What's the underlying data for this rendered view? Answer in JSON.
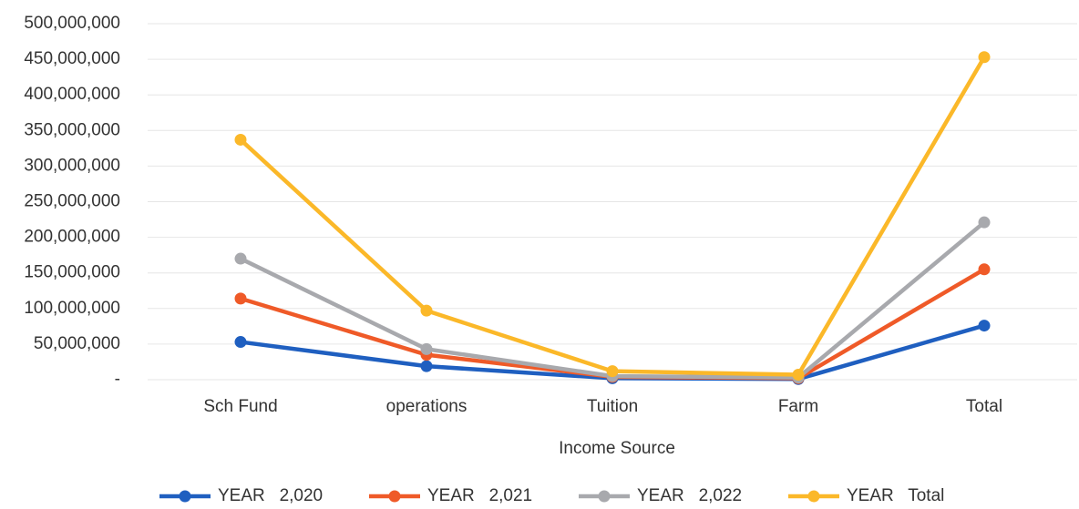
{
  "chart_data": {
    "type": "line",
    "x_label": "Income Source",
    "categories": [
      "Sch Fund",
      "operations",
      "Tuition",
      "Farm",
      "Total"
    ],
    "series": [
      {
        "name": "YEAR   2,020",
        "color": "#1f5fc0",
        "values": [
          53000000,
          19000000,
          2000000,
          1000000,
          76000000
        ]
      },
      {
        "name": "YEAR   2,021",
        "color": "#ef5a28",
        "values": [
          114000000,
          35000000,
          4000000,
          2000000,
          155000000
        ]
      },
      {
        "name": "YEAR   2,022",
        "color": "#a8a9ad",
        "values": [
          170000000,
          43000000,
          5000000,
          3000000,
          221000000
        ]
      },
      {
        "name": "YEAR   Total",
        "color": "#fbb829",
        "values": [
          337000000,
          97000000,
          12000000,
          7000000,
          453000000
        ]
      }
    ],
    "ylim": [
      0,
      500000000
    ],
    "yticks": [
      {
        "value": 0,
        "label": "-"
      },
      {
        "value": 50000000,
        "label": "50,000,000"
      },
      {
        "value": 100000000,
        "label": "100,000,000"
      },
      {
        "value": 150000000,
        "label": "150,000,000"
      },
      {
        "value": 200000000,
        "label": "200,000,000"
      },
      {
        "value": 250000000,
        "label": "250,000,000"
      },
      {
        "value": 300000000,
        "label": "300,000,000"
      },
      {
        "value": 350000000,
        "label": "350,000,000"
      },
      {
        "value": 400000000,
        "label": "400,000,000"
      },
      {
        "value": 450000000,
        "label": "450,000,000"
      },
      {
        "value": 500000000,
        "label": "500,000,000"
      }
    ],
    "grid": true,
    "legend": "bottom"
  }
}
